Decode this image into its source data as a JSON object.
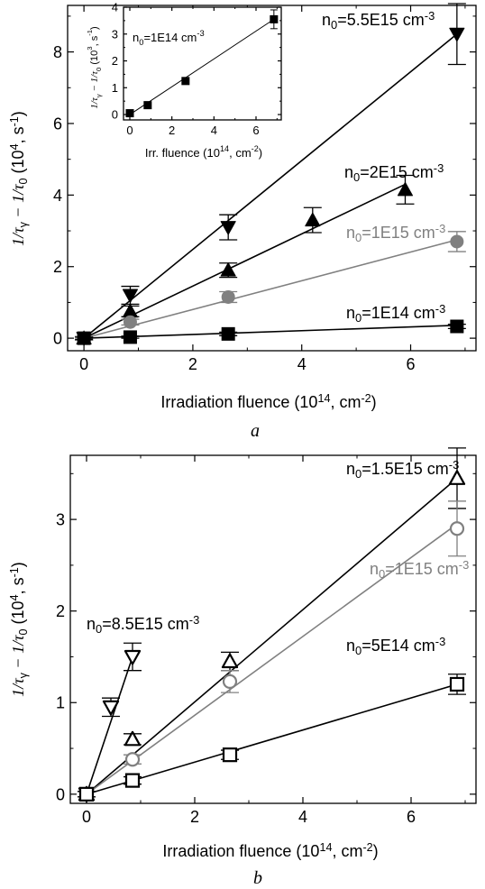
{
  "chart_data": [
    {
      "type": "scatter",
      "panel": "a",
      "panel_label": "a",
      "xlabel": "Irradiation fluence (10",
      "xlabel_exp": "14",
      "xlabel_tail": ", cm",
      "xlabel_exp2": "-2",
      "xlabel_end": ")",
      "ylabel": "1/τ",
      "ylabel_sub1": "γ",
      "ylabel_mid": " − 1/τ",
      "ylabel_sub2": "0",
      "ylabel_units": " (10",
      "ylabel_exp": "4",
      "ylabel_units2": ", s",
      "ylabel_exp2": "-1",
      "ylabel_end": ")",
      "xlim": [
        -0.3,
        7.2
      ],
      "ylim": [
        -0.35,
        9.3
      ],
      "xticks": [
        "0",
        "2",
        "4",
        "6"
      ],
      "xtick_values": [
        0,
        2,
        4,
        6
      ],
      "yticks": [
        "0",
        "2",
        "4",
        "6",
        "8"
      ],
      "ytick_values": [
        0,
        2,
        4,
        6,
        8
      ],
      "series": [
        {
          "name": "n0=5.5E15 cm-3",
          "label_base": "n",
          "label_sub": "0",
          "label_mid": "=5.5E15 cm",
          "label_exp": "-3",
          "marker": "triangle-down",
          "color": "#000000",
          "x": [
            0,
            0.85,
            2.65,
            6.85
          ],
          "y": [
            0,
            1.2,
            3.1,
            8.5
          ],
          "err": [
            0.05,
            0.25,
            0.35,
            0.85
          ],
          "fit": [
            [
              0,
              0
            ],
            [
              6.85,
              8.5
            ]
          ]
        },
        {
          "name": "n0=2E15 cm-3",
          "label_base": "n",
          "label_sub": "0",
          "label_mid": "=2E15 cm",
          "label_exp": "-3",
          "marker": "triangle-up",
          "color": "#000000",
          "x": [
            0,
            0.85,
            2.65,
            4.2,
            5.9
          ],
          "y": [
            0,
            0.75,
            1.9,
            3.3,
            4.15
          ],
          "err": [
            0.05,
            0.15,
            0.2,
            0.35,
            0.4
          ],
          "fit": [
            [
              0,
              0
            ],
            [
              5.9,
              4.3
            ]
          ]
        },
        {
          "name": "n0=1E15 cm-3",
          "label_base": "n",
          "label_sub": "0",
          "label_mid": "=1E15 cm",
          "label_exp": "-3",
          "marker": "circle",
          "color": "#808080",
          "x": [
            0,
            0.85,
            2.65,
            6.85
          ],
          "y": [
            0,
            0.45,
            1.15,
            2.7
          ],
          "err": [
            0.05,
            0.08,
            0.15,
            0.28
          ],
          "fit": [
            [
              0,
              0
            ],
            [
              6.85,
              2.75
            ]
          ]
        },
        {
          "name": "n0=1E14 cm-3",
          "label_base": "n",
          "label_sub": "0",
          "label_mid": "=1E14 cm",
          "label_exp": "-3",
          "marker": "square",
          "color": "#000000",
          "x": [
            0,
            0.85,
            2.65,
            6.85
          ],
          "y": [
            0,
            0.03,
            0.12,
            0.33
          ],
          "err": [
            0.03,
            0.03,
            0.05,
            0.06
          ],
          "fit": [
            [
              0,
              0
            ],
            [
              6.85,
              0.36
            ]
          ]
        }
      ],
      "inset": {
        "type": "scatter",
        "label_base": "n",
        "label_sub": "0",
        "label_mid": "=1E14 cm",
        "label_exp": "-3",
        "xlabel": "Irr. fluence (10",
        "xlabel_exp": "14",
        "xlabel_tail": ", cm",
        "xlabel_exp2": "-2",
        "xlabel_end": ")",
        "ylabel": "1/τ",
        "ylabel_sub1": "γ",
        "ylabel_mid": " − 1/τ",
        "ylabel_sub2": "0",
        "ylabel_units": " (10",
        "ylabel_exp": "3",
        "ylabel_units2": ", s",
        "ylabel_exp2": "-1",
        "ylabel_end": ")",
        "xlim": [
          -0.3,
          7.2
        ],
        "ylim": [
          -0.2,
          4
        ],
        "xticks": [
          "0",
          "2",
          "4",
          "6"
        ],
        "xtick_values": [
          0,
          2,
          4,
          6
        ],
        "yticks": [
          "0",
          "1",
          "2",
          "3",
          "4"
        ],
        "ytick_values": [
          0,
          1,
          2,
          3,
          4
        ],
        "x": [
          0,
          0.85,
          2.65,
          6.85
        ],
        "y": [
          0.05,
          0.35,
          1.25,
          3.55
        ],
        "err": [
          0.05,
          0.05,
          0.08,
          0.35
        ],
        "fit": [
          [
            0,
            0
          ],
          [
            6.85,
            3.55
          ]
        ]
      }
    },
    {
      "type": "scatter",
      "panel": "b",
      "panel_label": "b",
      "xlabel": "Irradiation fluence (10",
      "xlabel_exp": "14",
      "xlabel_tail": ", cm",
      "xlabel_exp2": "-2",
      "xlabel_end": ")",
      "ylabel": "1/τ",
      "ylabel_sub1": "γ",
      "ylabel_mid": " − 1/τ",
      "ylabel_sub2": "0",
      "ylabel_units": " (10",
      "ylabel_exp": "4",
      "ylabel_units2": ", s",
      "ylabel_exp2": "-1",
      "ylabel_end": ")",
      "xlim": [
        -0.3,
        7.2
      ],
      "ylim": [
        -0.1,
        3.7
      ],
      "xticks": [
        "0",
        "2",
        "4",
        "6"
      ],
      "xtick_values": [
        0,
        2,
        4,
        6
      ],
      "yticks": [
        "0",
        "1",
        "2",
        "3"
      ],
      "ytick_values": [
        0,
        1,
        2,
        3
      ],
      "series": [
        {
          "name": "n0=8.5E15 cm-3",
          "label_base": "n",
          "label_sub": "0",
          "label_mid": "=8.5E15 cm",
          "label_exp": "-3",
          "marker": "triangle-down-open",
          "color": "#000000",
          "x": [
            0,
            0.45,
            0.85
          ],
          "y": [
            0,
            0.95,
            1.5
          ],
          "err": [
            0.03,
            0.1,
            0.15
          ],
          "fit": [
            [
              0,
              0
            ],
            [
              0.85,
              1.5
            ]
          ]
        },
        {
          "name": "n0=1.5E15 cm-3",
          "label_base": "n",
          "label_sub": "0",
          "label_mid": "=1.5E15 cm",
          "label_exp": "-3",
          "marker": "triangle-up-open",
          "color": "#000000",
          "x": [
            0,
            0.85,
            2.65,
            6.85
          ],
          "y": [
            0,
            0.6,
            1.45,
            3.45
          ],
          "err": [
            0.03,
            0.06,
            0.1,
            0.33
          ],
          "fit": [
            [
              0,
              0
            ],
            [
              6.85,
              3.45
            ]
          ]
        },
        {
          "name": "n0=1E15 cm-3",
          "label_base": "n",
          "label_sub": "0",
          "label_mid": "=1E15 cm",
          "label_exp": "-3",
          "marker": "circle-open",
          "color": "#808080",
          "x": [
            0,
            0.85,
            2.65,
            6.85
          ],
          "y": [
            0,
            0.38,
            1.23,
            2.9
          ],
          "err": [
            0.03,
            0.05,
            0.12,
            0.3
          ],
          "fit": [
            [
              0,
              0
            ],
            [
              6.85,
              2.95
            ]
          ]
        },
        {
          "name": "n0=5E14 cm-3",
          "label_base": "n",
          "label_sub": "0",
          "label_mid": "=5E14 cm",
          "label_exp": "-3",
          "marker": "square-open",
          "color": "#000000",
          "x": [
            0,
            0.85,
            2.65,
            6.85
          ],
          "y": [
            0,
            0.15,
            0.43,
            1.2
          ],
          "err": [
            0.03,
            0.04,
            0.05,
            0.11
          ],
          "fit": [
            [
              0,
              0
            ],
            [
              6.85,
              1.2
            ]
          ]
        }
      ]
    }
  ]
}
